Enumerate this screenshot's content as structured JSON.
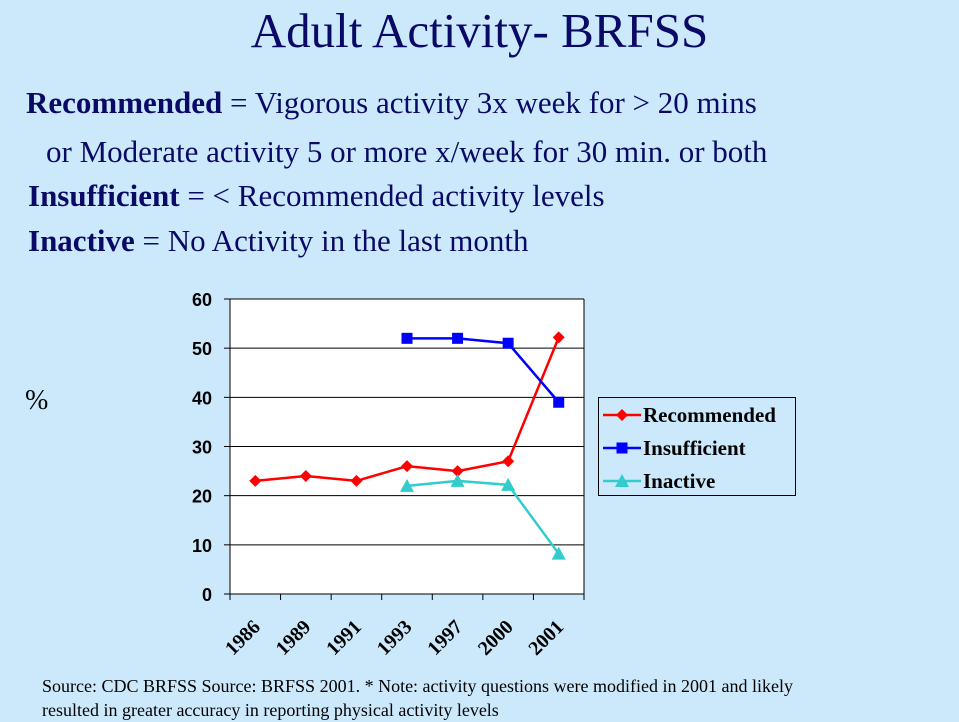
{
  "title": "Adult Activity- BRFSS",
  "definitions": [
    {
      "term": "Recommended",
      "text": " = Vigorous activity 3x week for > 20 mins"
    },
    {
      "term": "",
      "text": "or Moderate activity 5 or more x/week for 30 min. or both"
    },
    {
      "term": "Insufficient",
      "text": " = < Recommended activity levels"
    },
    {
      "term": "Inactive",
      "text": " = No Activity in the last month"
    }
  ],
  "source": "Source: CDC BRFSS Source: BRFSS 2001.  * Note: activity questions were modified in 2001 and likely resulted in greater accuracy in reporting physical activity levels",
  "chart_data": {
    "type": "line",
    "ylabel": "%",
    "xlabel": "",
    "categories": [
      "1986",
      "1989",
      "1991",
      "1993",
      "1997",
      "2000",
      "2001"
    ],
    "ylim": [
      0,
      60
    ],
    "yticks": [
      0,
      10,
      20,
      30,
      40,
      50,
      60
    ],
    "grid": "horizontal",
    "legend": "right",
    "series": [
      {
        "name": "Recommended",
        "color": "#ff0000",
        "marker": "diamond",
        "values": [
          23,
          24,
          23,
          26,
          25,
          27,
          52.2
        ]
      },
      {
        "name": "Insufficient",
        "color": "#0000ff",
        "marker": "square",
        "values": [
          null,
          null,
          null,
          52,
          52,
          51,
          39
        ]
      },
      {
        "name": "Inactive",
        "color": "#33cccc",
        "marker": "triangle",
        "values": [
          null,
          null,
          null,
          22,
          23,
          22.2,
          8.2
        ]
      }
    ]
  }
}
